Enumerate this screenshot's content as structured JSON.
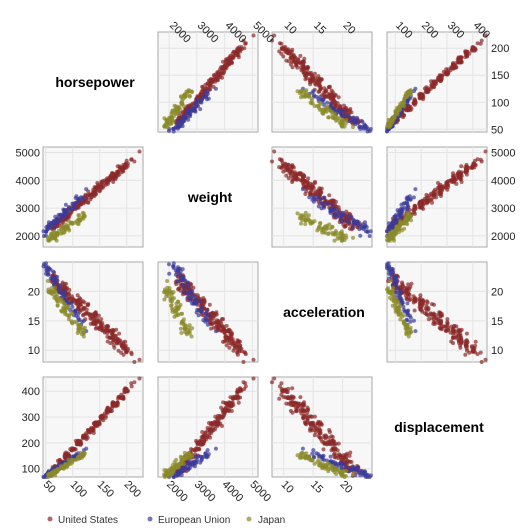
{
  "chart_data": {
    "type": "scatter",
    "variables": [
      "horsepower",
      "weight",
      "acceleration",
      "displacement"
    ],
    "axes": {
      "horsepower": {
        "range": [
          45,
          230
        ],
        "ticks": [
          50,
          100,
          150,
          200
        ]
      },
      "weight": {
        "range": [
          1600,
          5200
        ],
        "ticks": [
          2000,
          3000,
          4000,
          5000
        ]
      },
      "acceleration": {
        "range": [
          8,
          25
        ],
        "ticks": [
          10,
          15,
          20
        ]
      },
      "displacement": {
        "range": [
          68,
          455
        ],
        "ticks": [
          100,
          200,
          300,
          400
        ]
      }
    },
    "top_axis_ticks": {
      "1": [
        2000,
        3000,
        4000,
        5000
      ],
      "2": [
        10,
        15,
        20
      ],
      "3": [
        100,
        200,
        300,
        400
      ]
    },
    "bottom_axis_ticks": {
      "0": [
        50,
        100,
        150,
        200
      ],
      "1": [
        2000,
        3000,
        4000,
        5000
      ],
      "2": [
        10,
        15,
        20
      ]
    },
    "right_axis_ticks": {
      "0": [
        50,
        100,
        150,
        200
      ],
      "1": [
        2000,
        3000,
        4000,
        5000
      ],
      "2": [
        10,
        15,
        20
      ]
    },
    "series": [
      {
        "name": "United States",
        "color": "#8b2a2a",
        "count": 245,
        "hp": [
          60,
          225
        ],
        "acc": [
          8,
          22.2
        ],
        "disp": [
          85,
          455
        ],
        "weight": [
          1800,
          5140
        ]
      },
      {
        "name": "European Union",
        "color": "#3a3a9a",
        "count": 70,
        "hp": [
          46,
          133
        ],
        "acc": [
          12.2,
          24.8
        ],
        "disp": [
          68,
          183
        ],
        "weight": [
          1825,
          3820
        ]
      },
      {
        "name": "Japan",
        "color": "#8a8a2a",
        "count": 79,
        "hp": [
          52,
          132
        ],
        "acc": [
          11.4,
          21
        ],
        "disp": [
          70,
          168
        ],
        "weight": [
          1613,
          2930
        ]
      }
    ],
    "grid": true,
    "legend_placement": "bottom-left"
  }
}
